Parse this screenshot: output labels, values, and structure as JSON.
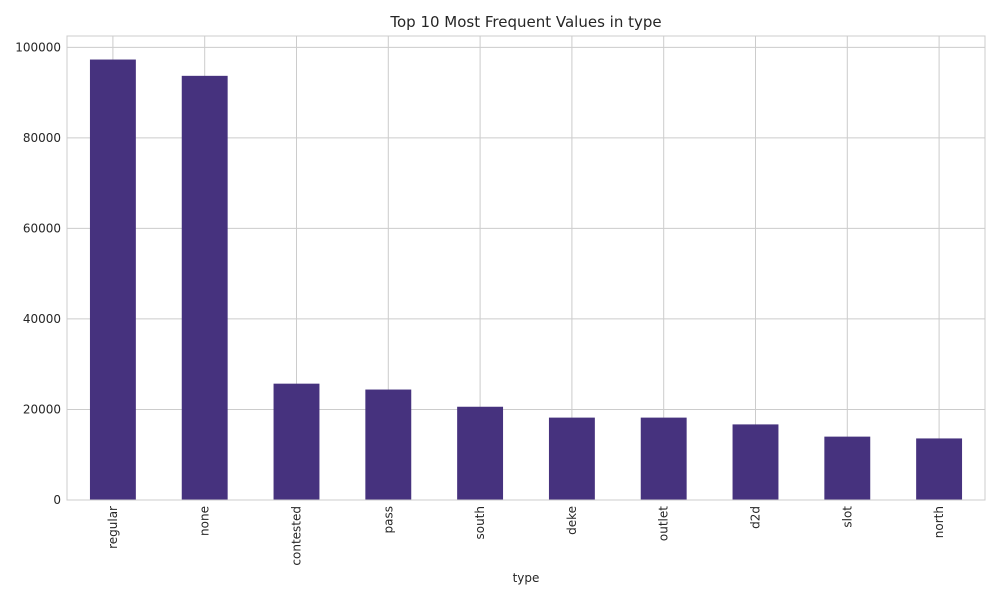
{
  "chart_data": {
    "type": "bar",
    "title": "Top 10 Most Frequent Values in type",
    "xlabel": "type",
    "ylabel": "",
    "categories": [
      "regular",
      "none",
      "contested",
      "pass",
      "south",
      "deke",
      "outlet",
      "d2d",
      "slot",
      "north"
    ],
    "values": [
      97300,
      93700,
      25700,
      24400,
      20600,
      18200,
      18200,
      16700,
      14000,
      13600
    ],
    "ylim": [
      0,
      102500
    ],
    "yticks": [
      0,
      20000,
      40000,
      60000,
      80000,
      100000
    ],
    "ytick_labels": [
      "0",
      "20000",
      "40000",
      "60000",
      "80000",
      "100000"
    ],
    "bar_color": "#46327e",
    "grid": true
  }
}
